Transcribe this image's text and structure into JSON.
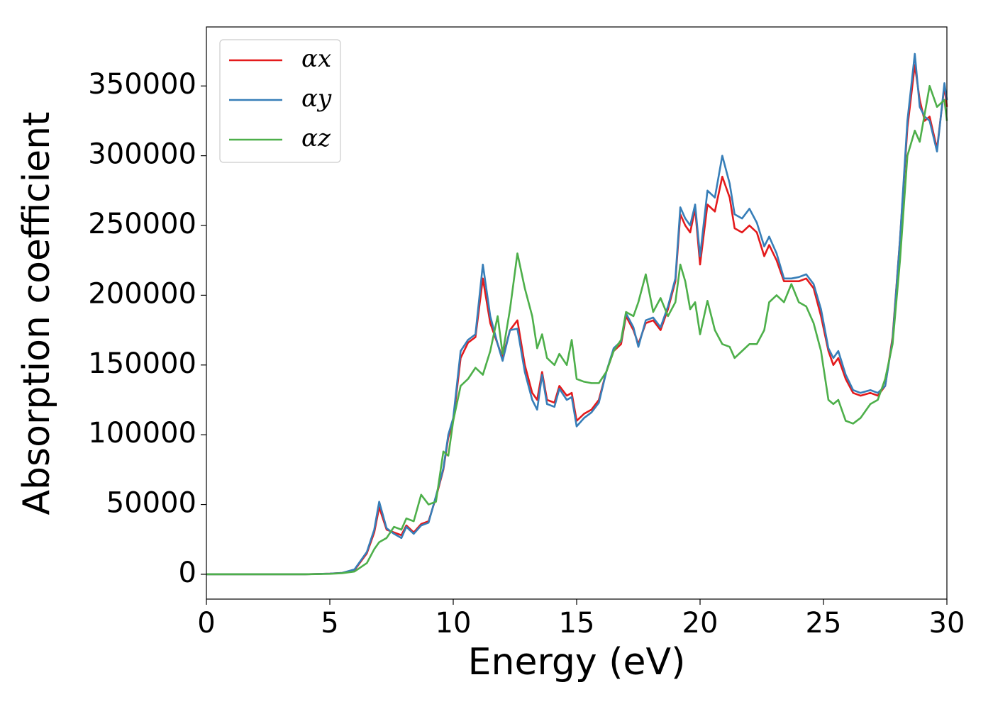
{
  "chart_data": {
    "type": "line",
    "xlabel": "Energy (eV)",
    "ylabel": "Absorption coefficient",
    "x": [
      0,
      2,
      4,
      5,
      5.5,
      6,
      6.5,
      6.8,
      7,
      7.3,
      7.6,
      7.9,
      8.1,
      8.4,
      8.7,
      9,
      9.3,
      9.6,
      9.8,
      10,
      10.3,
      10.6,
      10.9,
      11.2,
      11.5,
      11.8,
      12,
      12.3,
      12.6,
      12.9,
      13.2,
      13.4,
      13.6,
      13.8,
      14.1,
      14.3,
      14.6,
      14.8,
      15,
      15.3,
      15.6,
      15.9,
      16.2,
      16.5,
      16.8,
      17,
      17.3,
      17.5,
      17.8,
      18.1,
      18.4,
      18.7,
      19,
      19.2,
      19.4,
      19.6,
      19.8,
      20,
      20.3,
      20.6,
      20.9,
      21.2,
      21.4,
      21.7,
      22,
      22.3,
      22.6,
      22.8,
      23.1,
      23.4,
      23.7,
      24,
      24.3,
      24.6,
      24.9,
      25.2,
      25.4,
      25.6,
      25.9,
      26.2,
      26.5,
      26.9,
      27.2,
      27.5,
      27.8,
      28.1,
      28.4,
      28.7,
      28.9,
      29.1,
      29.3,
      29.6,
      29.9,
      30
    ],
    "series": [
      {
        "name": "αx",
        "color": "#e41a1c",
        "values": [
          0,
          0,
          0,
          500,
          1000,
          3000,
          15000,
          30000,
          48000,
          32000,
          30000,
          28000,
          35000,
          30000,
          36000,
          38000,
          55000,
          75000,
          98000,
          110000,
          155000,
          166000,
          170000,
          212000,
          180000,
          165000,
          155000,
          175000,
          182000,
          150000,
          130000,
          125000,
          145000,
          125000,
          123000,
          135000,
          128000,
          130000,
          110000,
          115000,
          118000,
          125000,
          145000,
          160000,
          165000,
          185000,
          175000,
          165000,
          180000,
          182000,
          175000,
          190000,
          210000,
          258000,
          250000,
          245000,
          262000,
          222000,
          265000,
          260000,
          285000,
          270000,
          248000,
          245000,
          250000,
          245000,
          228000,
          236000,
          225000,
          210000,
          210000,
          210000,
          212000,
          205000,
          185000,
          160000,
          150000,
          155000,
          140000,
          130000,
          128000,
          130000,
          128000,
          135000,
          170000,
          240000,
          320000,
          365000,
          340000,
          325000,
          328000,
          305000,
          350000,
          335000
        ]
      },
      {
        "name": "αy",
        "color": "#377eb8",
        "values": [
          0,
          0,
          0,
          500,
          1000,
          3500,
          16000,
          32000,
          52000,
          33000,
          29000,
          26000,
          34000,
          29000,
          35000,
          37000,
          56000,
          76000,
          100000,
          112000,
          160000,
          168000,
          172000,
          222000,
          185000,
          165000,
          153000,
          175000,
          176000,
          145000,
          125000,
          118000,
          143000,
          122000,
          120000,
          133000,
          125000,
          127000,
          106000,
          112000,
          116000,
          123000,
          145000,
          162000,
          167000,
          187000,
          177000,
          163000,
          182000,
          184000,
          177000,
          192000,
          212000,
          263000,
          255000,
          250000,
          265000,
          228000,
          275000,
          270000,
          300000,
          280000,
          258000,
          255000,
          262000,
          252000,
          235000,
          242000,
          230000,
          212000,
          212000,
          213000,
          215000,
          208000,
          190000,
          162000,
          155000,
          160000,
          143000,
          132000,
          130000,
          132000,
          130000,
          135000,
          168000,
          240000,
          325000,
          373000,
          335000,
          328000,
          325000,
          303000,
          352000,
          340000
        ]
      },
      {
        "name": "αz",
        "color": "#4daf4a",
        "values": [
          0,
          0,
          0,
          300,
          800,
          2000,
          8000,
          18000,
          23000,
          26000,
          34000,
          32000,
          40000,
          38000,
          57000,
          50000,
          52000,
          88000,
          85000,
          110000,
          135000,
          140000,
          148000,
          143000,
          160000,
          185000,
          158000,
          190000,
          230000,
          205000,
          185000,
          162000,
          172000,
          155000,
          150000,
          158000,
          150000,
          168000,
          140000,
          138000,
          137000,
          137000,
          145000,
          160000,
          168000,
          188000,
          185000,
          195000,
          215000,
          188000,
          198000,
          185000,
          195000,
          222000,
          210000,
          190000,
          195000,
          172000,
          196000,
          175000,
          165000,
          163000,
          155000,
          160000,
          165000,
          165000,
          175000,
          195000,
          200000,
          195000,
          208000,
          195000,
          192000,
          180000,
          160000,
          125000,
          122000,
          125000,
          110000,
          108000,
          112000,
          122000,
          125000,
          140000,
          165000,
          225000,
          300000,
          318000,
          310000,
          330000,
          350000,
          335000,
          340000,
          325000
        ]
      }
    ],
    "xlim": [
      0,
      30
    ],
    "xticks": [
      0,
      5,
      10,
      15,
      20,
      25,
      30
    ],
    "ylim": [
      -17800,
      392300
    ],
    "yticks": [
      0,
      50000,
      100000,
      150000,
      200000,
      250000,
      300000,
      350000
    ],
    "legend": "upper left",
    "grid": false
  }
}
